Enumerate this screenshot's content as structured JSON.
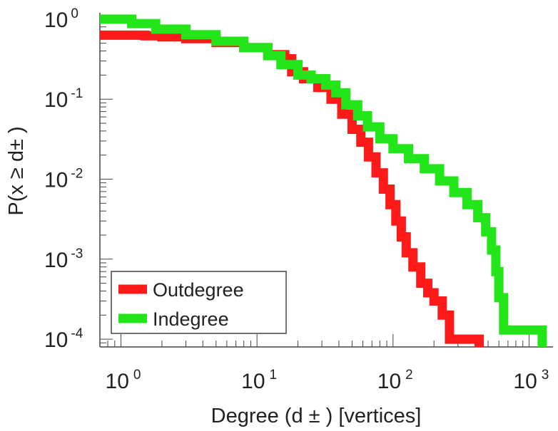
{
  "chart_data": {
    "type": "line",
    "title": "",
    "xlabel": "Degree (d ± ) [vertices]",
    "ylabel": "P(x ≥ d± )",
    "xscale": "log",
    "yscale": "log",
    "xlim": [
      0.7,
      1500
    ],
    "ylim": [
      8e-05,
      1.2
    ],
    "grid": false,
    "legend_position": "bottom-left",
    "x_ticks": [
      {
        "value": 1,
        "base": "10",
        "exp": "0"
      },
      {
        "value": 10,
        "base": "10",
        "exp": "1"
      },
      {
        "value": 100,
        "base": "10",
        "exp": "2"
      },
      {
        "value": 1000,
        "base": "10",
        "exp": "3"
      }
    ],
    "y_ticks": [
      {
        "value": 1,
        "base": "10",
        "exp": "0"
      },
      {
        "value": 0.1,
        "base": "10",
        "exp": "-1"
      },
      {
        "value": 0.01,
        "base": "10",
        "exp": "-2"
      },
      {
        "value": 0.001,
        "base": "10",
        "exp": "-3"
      },
      {
        "value": 0.0001,
        "base": "10",
        "exp": "-4"
      }
    ],
    "series": [
      {
        "name": "Outdegree",
        "color": "#ff1a1a",
        "x": [
          0.7,
          1,
          1.5,
          2,
          3,
          5,
          8,
          12,
          16,
          18,
          22,
          28,
          35,
          42,
          50,
          58,
          66,
          75,
          85,
          95,
          105,
          115,
          125,
          140,
          160,
          180,
          200,
          230,
          260,
          260,
          430,
          430
        ],
        "y": [
          0.63,
          0.63,
          0.62,
          0.6,
          0.57,
          0.51,
          0.44,
          0.36,
          0.32,
          0.22,
          0.18,
          0.14,
          0.1,
          0.065,
          0.042,
          0.029,
          0.019,
          0.012,
          0.0075,
          0.0048,
          0.003,
          0.0019,
          0.0012,
          0.0008,
          0.0005,
          0.00038,
          0.0003,
          0.0002,
          0.00013,
          0.0001,
          0.0001,
          8e-05
        ]
      },
      {
        "name": "Indegree",
        "color": "#22e51a",
        "x": [
          0.7,
          1,
          1.2,
          1.8,
          3,
          5,
          8,
          12,
          15,
          20,
          25,
          32,
          38,
          45,
          55,
          65,
          80,
          100,
          130,
          170,
          220,
          280,
          350,
          420,
          480,
          530,
          570,
          600,
          650,
          1250,
          1250
        ],
        "y": [
          1.0,
          1.0,
          0.88,
          0.75,
          0.64,
          0.53,
          0.44,
          0.35,
          0.27,
          0.2,
          0.18,
          0.15,
          0.12,
          0.085,
          0.062,
          0.045,
          0.032,
          0.024,
          0.018,
          0.0135,
          0.0095,
          0.0068,
          0.0048,
          0.0033,
          0.0022,
          0.0013,
          0.0007,
          0.00033,
          0.00013,
          0.00013,
          8e-05
        ]
      }
    ]
  }
}
